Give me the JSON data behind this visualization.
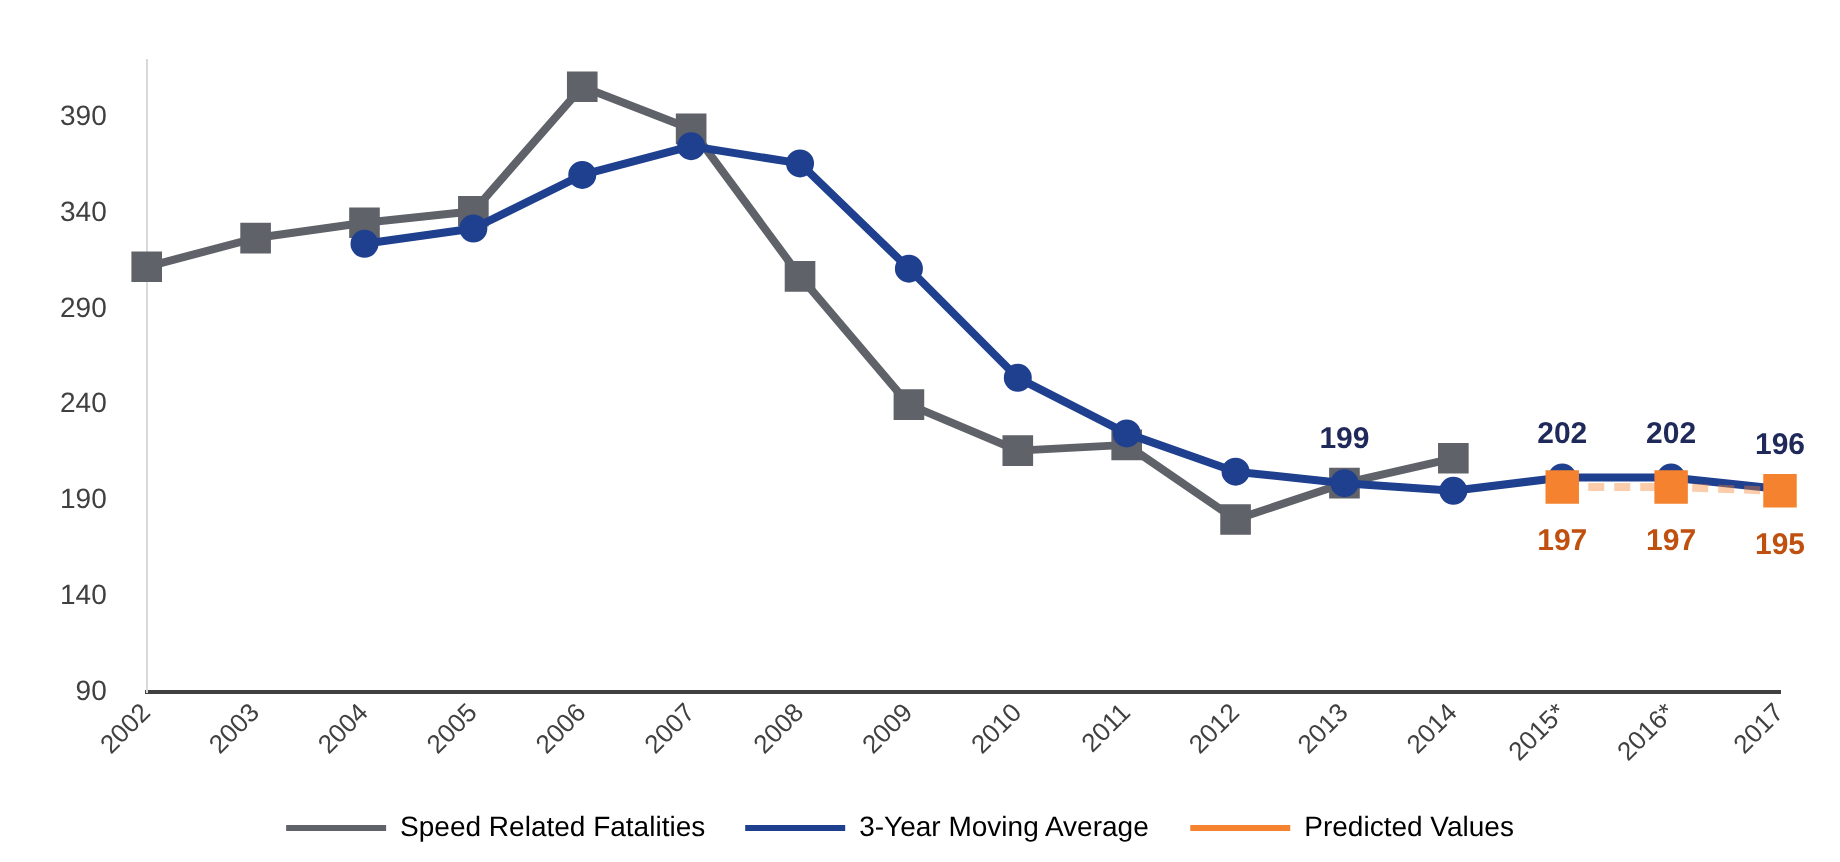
{
  "chart_data": {
    "type": "line",
    "categories": [
      "2002",
      "2003",
      "2004",
      "2005",
      "2006",
      "2007",
      "2008",
      "2009",
      "2010",
      "2011",
      "2012",
      "2013",
      "2014",
      "2015*",
      "2016*",
      "2017"
    ],
    "series": [
      {
        "name": "Speed Related Fatalities",
        "color": "#5f6268",
        "marker": "square",
        "values": [
          312,
          327,
          335,
          341,
          406,
          384,
          307,
          240,
          216,
          219,
          180,
          199,
          212,
          null,
          null,
          null
        ]
      },
      {
        "name": "3-Year Moving Average",
        "color": "#1f3f8f",
        "marker": "circle",
        "values": [
          null,
          null,
          324,
          332,
          360,
          375,
          366,
          311,
          254,
          225,
          205,
          199,
          195,
          202,
          202,
          196
        ],
        "value_labels": [
          null,
          null,
          null,
          null,
          null,
          null,
          null,
          null,
          null,
          null,
          null,
          "199",
          null,
          "202",
          "202",
          "196"
        ]
      },
      {
        "name": "Predicted Values",
        "color": "#f5822e",
        "marker": "square",
        "line_style": "dashed",
        "values": [
          null,
          null,
          null,
          null,
          null,
          null,
          null,
          null,
          null,
          null,
          null,
          null,
          null,
          197,
          197,
          195
        ],
        "value_labels": [
          null,
          null,
          null,
          null,
          null,
          null,
          null,
          null,
          null,
          null,
          null,
          null,
          null,
          "197",
          "197",
          "195"
        ]
      }
    ],
    "ylim": [
      90,
      420
    ],
    "yticks": [
      90,
      140,
      190,
      240,
      290,
      340,
      390
    ],
    "grid": false,
    "legend": "bottom"
  }
}
